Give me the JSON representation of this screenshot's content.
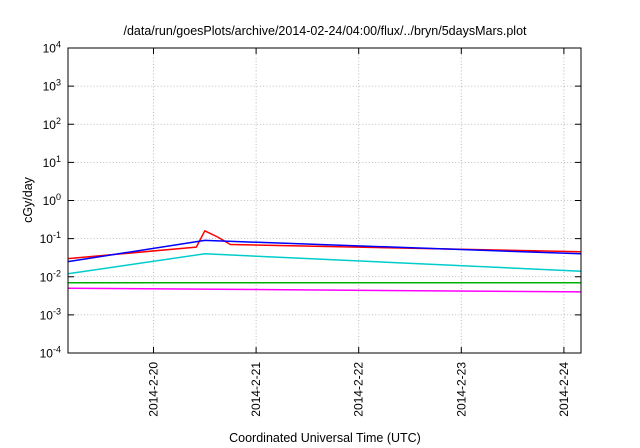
{
  "chart_data": {
    "type": "line",
    "title": "/data/run/goesPlots/archive/2014-02-24/04:00/flux/../bryn/5daysMars.plot",
    "xlabel": "Coordinated Universal Time (UTC)",
    "ylabel": "cGy/day",
    "yscale": "log",
    "ylim": [
      0.0001,
      10000
    ],
    "xlim": [
      "2014-02-19T04:00",
      "2014-02-24T04:00"
    ],
    "grid": true,
    "legend": "none",
    "x_ticks": [
      {
        "x": "2014-02-20T00:00",
        "label": "2014-2-20"
      },
      {
        "x": "2014-02-21T00:00",
        "label": "2014-2-21"
      },
      {
        "x": "2014-02-22T00:00",
        "label": "2014-2-22"
      },
      {
        "x": "2014-02-23T00:00",
        "label": "2014-2-23"
      },
      {
        "x": "2014-02-24T00:00",
        "label": "2014-2-24"
      }
    ],
    "y_ticks": [
      {
        "y": 0.0001,
        "base": "10",
        "exp": "-4"
      },
      {
        "y": 0.001,
        "base": "10",
        "exp": "-3"
      },
      {
        "y": 0.01,
        "base": "10",
        "exp": "-2"
      },
      {
        "y": 0.1,
        "base": "10",
        "exp": "-1"
      },
      {
        "y": 1,
        "base": "10",
        "exp": "0"
      },
      {
        "y": 10,
        "base": "10",
        "exp": "1"
      },
      {
        "y": 100,
        "base": "10",
        "exp": "2"
      },
      {
        "y": 1000,
        "base": "10",
        "exp": "3"
      },
      {
        "y": 10000,
        "base": "10",
        "exp": "4"
      }
    ],
    "series": [
      {
        "color": "#ff0000",
        "values": [
          {
            "x": "2014-02-19T04:00",
            "y": 0.03
          },
          {
            "x": "2014-02-20T10:00",
            "y": 0.06
          },
          {
            "x": "2014-02-20T12:00",
            "y": 0.16
          },
          {
            "x": "2014-02-20T15:00",
            "y": 0.11
          },
          {
            "x": "2014-02-20T18:00",
            "y": 0.07
          },
          {
            "x": "2014-02-24T04:00",
            "y": 0.045
          }
        ]
      },
      {
        "color": "#0000ff",
        "values": [
          {
            "x": "2014-02-19T04:00",
            "y": 0.025
          },
          {
            "x": "2014-02-20T12:00",
            "y": 0.09
          },
          {
            "x": "2014-02-24T04:00",
            "y": 0.04
          }
        ]
      },
      {
        "color": "#00cccc",
        "values": [
          {
            "x": "2014-02-19T04:00",
            "y": 0.012
          },
          {
            "x": "2014-02-20T12:00",
            "y": 0.04
          },
          {
            "x": "2014-02-24T04:00",
            "y": 0.014
          }
        ]
      },
      {
        "color": "#00b000",
        "values": [
          {
            "x": "2014-02-19T04:00",
            "y": 0.007
          },
          {
            "x": "2014-02-24T04:00",
            "y": 0.007
          }
        ]
      },
      {
        "color": "#ff00ff",
        "values": [
          {
            "x": "2014-02-19T04:00",
            "y": 0.005
          },
          {
            "x": "2014-02-24T04:00",
            "y": 0.004
          }
        ]
      }
    ]
  }
}
